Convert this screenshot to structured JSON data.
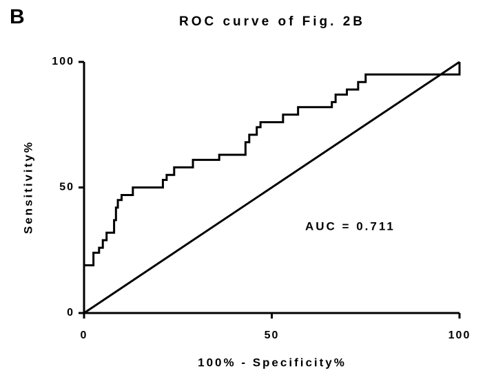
{
  "panel_label": "B",
  "chart_data": {
    "type": "line",
    "title": "ROC curve of Fig. 2B",
    "x_label": "100% - Specificity%",
    "y_label": "Sensitivity%",
    "annotation": "AUC = 0.711",
    "xlim": [
      0,
      100
    ],
    "ylim": [
      0,
      100
    ],
    "xticks": [
      0,
      50,
      100
    ],
    "yticks": [
      0,
      50,
      100
    ],
    "series": [
      {
        "color": "#000000",
        "x": [
          0,
          0,
          2.5,
          2.5,
          4,
          4,
          5,
          5,
          6,
          6,
          8,
          8,
          8.5,
          8.5,
          9,
          9,
          10,
          10,
          13,
          13,
          21,
          21,
          22,
          22,
          24,
          24,
          29,
          29,
          36,
          36,
          43,
          43,
          44,
          44,
          46,
          46,
          47,
          47,
          53,
          53,
          57,
          57,
          66,
          66,
          67,
          67,
          70,
          70,
          73,
          73,
          75,
          75,
          100,
          100
        ],
        "values": [
          0,
          19,
          19,
          24,
          24,
          26,
          26,
          29,
          29,
          32,
          32,
          37,
          37,
          42,
          42,
          45,
          45,
          47,
          47,
          50,
          50,
          53,
          53,
          55,
          55,
          58,
          58,
          61,
          61,
          63,
          63,
          68,
          68,
          71,
          71,
          74,
          74,
          76,
          76,
          79,
          79,
          82,
          82,
          84,
          84,
          87,
          87,
          89,
          89,
          92,
          92,
          95,
          95,
          100
        ]
      },
      {
        "color": "#000000",
        "x": [
          0,
          100
        ],
        "values": [
          0,
          100
        ]
      }
    ]
  }
}
